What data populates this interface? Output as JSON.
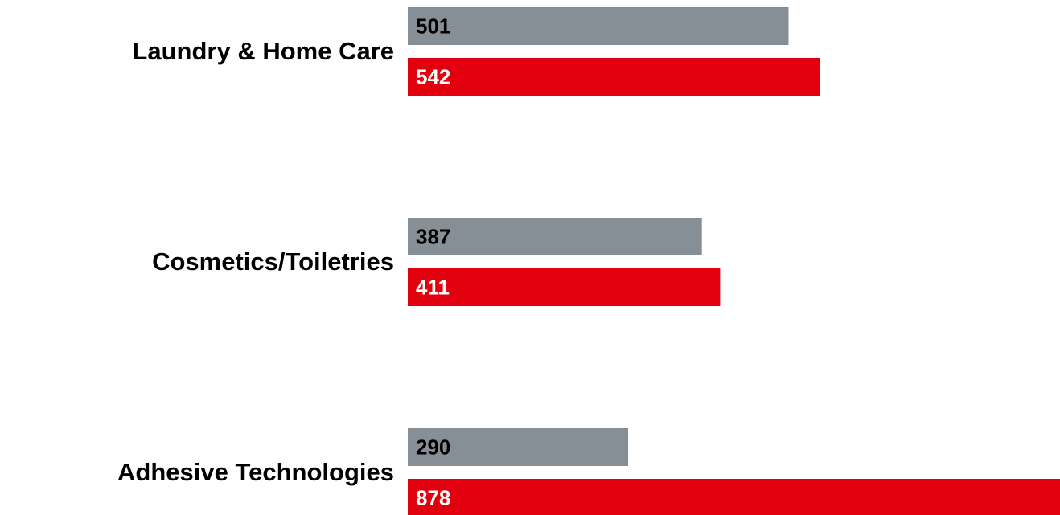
{
  "chart_data": {
    "type": "bar",
    "orientation": "horizontal",
    "categories": [
      "Laundry & Home Care",
      "Cosmetics/Toiletries",
      "Adhesive Technologies"
    ],
    "series": [
      {
        "color": "#868e96",
        "values": [
          501,
          387,
          290
        ]
      },
      {
        "color": "#e2000f",
        "values": [
          542,
          411,
          878
        ]
      }
    ]
  }
}
